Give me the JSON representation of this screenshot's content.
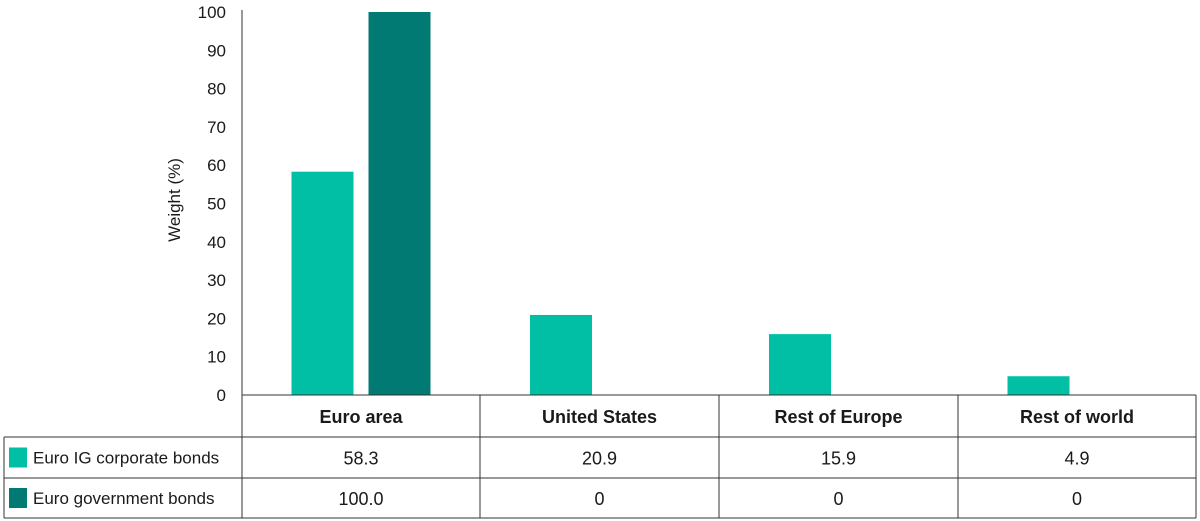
{
  "chart_data": {
    "type": "bar",
    "ylabel": "Weight (%)",
    "ylim": [
      0,
      100
    ],
    "yticks": [
      0,
      10,
      20,
      30,
      40,
      50,
      60,
      70,
      80,
      90,
      100
    ],
    "categories": [
      "Euro area",
      "United States",
      "Rest of Europe",
      "Rest of world"
    ],
    "series": [
      {
        "name": "Euro IG corporate bonds",
        "color": "#00bfa5",
        "values": [
          58.3,
          20.9,
          15.9,
          4.9
        ],
        "labels": [
          "58.3",
          "20.9",
          "15.9",
          "4.9"
        ]
      },
      {
        "name": "Euro government bonds",
        "color": "#007a72",
        "values": [
          100.0,
          0,
          0,
          0
        ],
        "labels": [
          "100.0",
          "0",
          "0",
          "0"
        ]
      }
    ],
    "legend": "data table rows below chart",
    "grid": false
  }
}
